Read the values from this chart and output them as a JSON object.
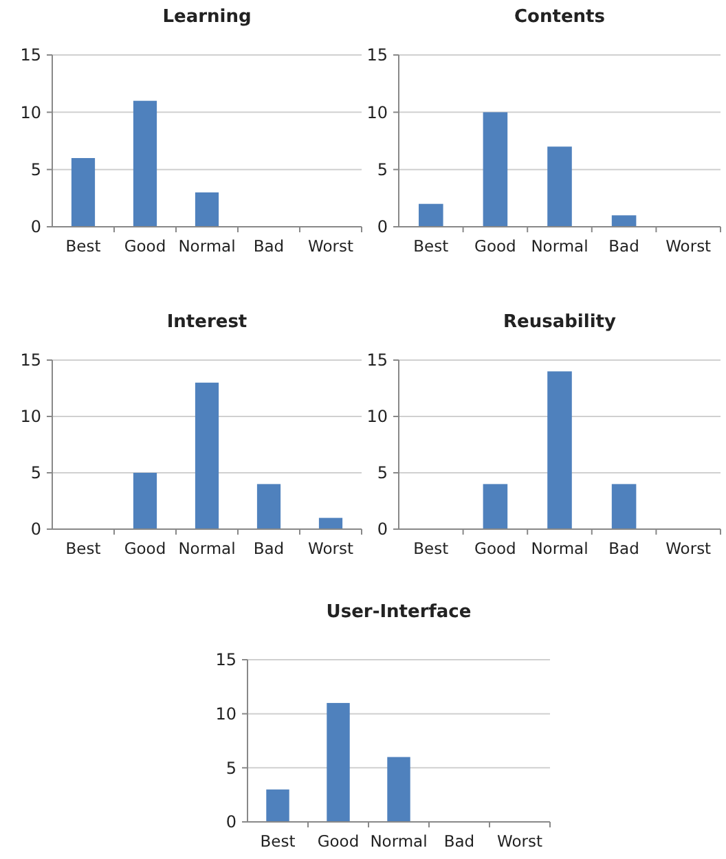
{
  "chart_data": [
    {
      "type": "bar",
      "title": "Learning",
      "categories": [
        "Best",
        "Good",
        "Normal",
        "Bad",
        "Worst"
      ],
      "values": [
        6,
        11,
        3,
        0,
        0
      ],
      "color": "#4f81bd",
      "ylim": [
        0,
        15
      ],
      "yticks": [
        0,
        5,
        10,
        15
      ],
      "grid": "y"
    },
    {
      "type": "bar",
      "title": "Contents",
      "categories": [
        "Best",
        "Good",
        "Normal",
        "Bad",
        "Worst"
      ],
      "values": [
        2,
        10,
        7,
        1,
        0
      ],
      "color": "#4f81bd",
      "ylim": [
        0,
        15
      ],
      "yticks": [
        0,
        5,
        10,
        15
      ],
      "grid": "y"
    },
    {
      "type": "bar",
      "title": "Interest",
      "categories": [
        "Best",
        "Good",
        "Normal",
        "Bad",
        "Worst"
      ],
      "values": [
        0,
        5,
        13,
        4,
        1
      ],
      "color": "#4f81bd",
      "ylim": [
        0,
        15
      ],
      "yticks": [
        0,
        5,
        10,
        15
      ],
      "grid": "y"
    },
    {
      "type": "bar",
      "title": "Reusability",
      "categories": [
        "Best",
        "Good",
        "Normal",
        "Bad",
        "Worst"
      ],
      "values": [
        0,
        4,
        14,
        4,
        0
      ],
      "color": "#4f81bd",
      "ylim": [
        0,
        15
      ],
      "yticks": [
        0,
        5,
        10,
        15
      ],
      "grid": "y"
    },
    {
      "type": "bar",
      "title": "User-Interface",
      "categories": [
        "Best",
        "Good",
        "Normal",
        "Bad",
        "Worst"
      ],
      "values": [
        3,
        11,
        6,
        0,
        0
      ],
      "color": "#4f81bd",
      "ylim": [
        0,
        15
      ],
      "yticks": [
        0,
        5,
        10,
        15
      ],
      "grid": "y"
    }
  ]
}
